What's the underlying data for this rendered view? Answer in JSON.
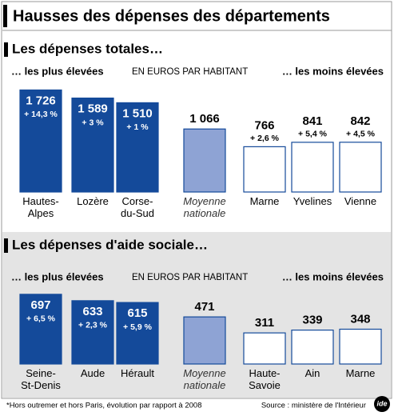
{
  "title": "Hausses des dépenses des départements",
  "chart_data": [
    {
      "type": "bar",
      "title": "Les dépenses totales…",
      "left_label": "… les plus élevées",
      "unit_label": "EN EUROS PAR HABITANT",
      "right_label": "… les moins élevées",
      "categories": [
        "Hautes-\nAlpes",
        "Lozère",
        "Corse-\ndu-Sud",
        "Moyenne\nnationale",
        "Marne",
        "Yvelines",
        "Vienne"
      ],
      "values": [
        1726,
        1589,
        1510,
        1066,
        766,
        841,
        842
      ],
      "value_labels": [
        "1 726",
        "1 589",
        "1 510",
        "1 066",
        "766",
        "841",
        "842"
      ],
      "changes": [
        "+ 14,3 %",
        "+ 3 %",
        "+ 1 %",
        null,
        "+ 2,6 %",
        "+ 5,4 %",
        "+ 4,5 %"
      ],
      "colors": [
        "#144a9a",
        "#144a9a",
        "#144a9a",
        "#8ea3d4",
        "#ffffff",
        "#ffffff",
        "#ffffff"
      ],
      "outline": "#144a9a",
      "ylim": [
        0,
        1800
      ]
    },
    {
      "type": "bar",
      "title": "Les dépenses d'aide sociale…",
      "left_label": "… les plus élevées",
      "unit_label": "EN EUROS PAR HABITANT",
      "right_label": "… les moins élevées",
      "categories": [
        "Seine-\nSt-Denis",
        "Aude",
        "Hérault",
        "Moyenne\nnationale",
        "Haute-\nSavoie",
        "Ain",
        "Marne"
      ],
      "values": [
        697,
        633,
        615,
        471,
        311,
        339,
        348
      ],
      "changes": [
        "+ 6,5 %",
        "+ 2,3 %",
        "+ 5,9 %",
        null,
        null,
        null,
        null
      ],
      "colors": [
        "#144a9a",
        "#144a9a",
        "#144a9a",
        "#8ea3d4",
        "#ffffff",
        "#ffffff",
        "#ffffff"
      ],
      "outline": "#144a9a",
      "ylim": [
        0,
        800
      ]
    }
  ],
  "footnote": "*Hors outremer et hors Paris, évolution par rapport à 2008",
  "source": "Source : ministère de l'Intérieur",
  "logo": "ide"
}
